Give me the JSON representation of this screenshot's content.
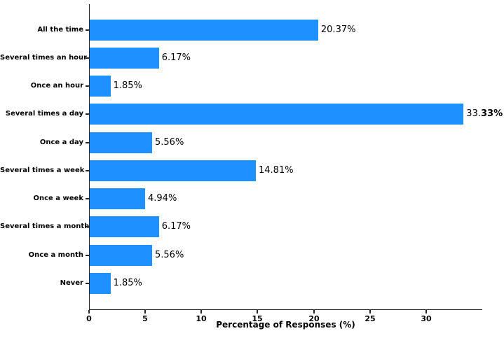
{
  "chart_data": {
    "type": "bar",
    "orientation": "horizontal",
    "title": "",
    "xlabel": "Percentage of Responses (%)",
    "ylabel": "",
    "xlim": [
      0,
      35
    ],
    "xticks": [
      0,
      5,
      10,
      15,
      20,
      25,
      30
    ],
    "xtick_labels": [
      "0",
      "5",
      "10",
      "15",
      "20",
      "25",
      "30"
    ],
    "grid": "off",
    "legend": "none",
    "bar_color": "#1E90FF",
    "axis_color": "#262626",
    "text_color": "#000000",
    "categories": [
      "All the time",
      "Several times an hour",
      "Once an hour",
      "Several times a day",
      "Once a day",
      "Several times a week",
      "Once a week",
      "Several times a month",
      "Once a month",
      "Never"
    ],
    "values": [
      20.37,
      6.17,
      1.85,
      33.33,
      5.56,
      14.81,
      4.94,
      6.17,
      5.56,
      1.85
    ],
    "value_labels": [
      "20.37%",
      "6.17%",
      "1.85%",
      "33.33%",
      "5.56%",
      "14.81%",
      "4.94%",
      "6.17%",
      "5.56%",
      "1.85%"
    ],
    "rows": [
      {
        "category": "All the time",
        "value": 20.37,
        "value_label": "20.37%",
        "value_label_bold": ""
      },
      {
        "category": "Several times an hour",
        "value": 6.17,
        "value_label": "6.17%",
        "value_label_bold": ""
      },
      {
        "category": "Once an hour",
        "value": 1.85,
        "value_label": "1.85%",
        "value_label_bold": ""
      },
      {
        "category": "Several times a day",
        "value": 33.33,
        "value_label": "33.",
        "value_label_bold": "33%"
      },
      {
        "category": "Once a day",
        "value": 5.56,
        "value_label": "5.56%",
        "value_label_bold": ""
      },
      {
        "category": "Several times a week",
        "value": 14.81,
        "value_label": "14.81%",
        "value_label_bold": ""
      },
      {
        "category": "Once a week",
        "value": 4.94,
        "value_label": "4.94%",
        "value_label_bold": ""
      },
      {
        "category": "Several times a month",
        "value": 6.17,
        "value_label": "6.17%",
        "value_label_bold": ""
      },
      {
        "category": "Once a month",
        "value": 5.56,
        "value_label": "5.56%",
        "value_label_bold": ""
      },
      {
        "category": "Never",
        "value": 1.85,
        "value_label": "1.85%",
        "value_label_bold": ""
      }
    ]
  }
}
